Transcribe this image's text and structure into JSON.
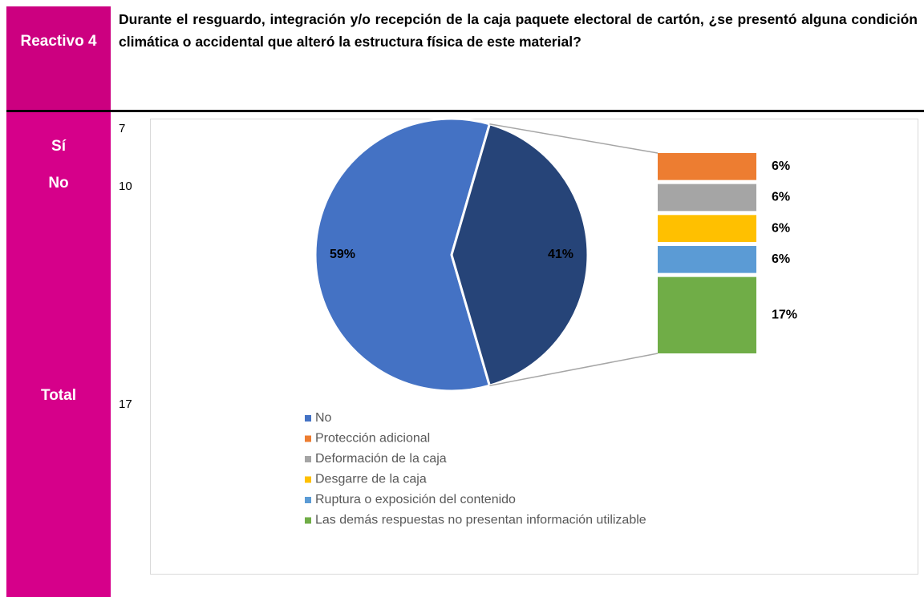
{
  "table": {
    "header": "Reactivo 4",
    "question": "Durante el resguardo, integración y/o recepción de la caja paquete electoral de cartón, ¿se presentó alguna condición climática o accidental que alteró la estructura física de este material?",
    "rows": [
      [
        "Sí",
        7
      ],
      [
        "No",
        10
      ],
      [
        "Total",
        17
      ]
    ]
  },
  "chart_data": {
    "type": "pie",
    "categories": [
      "No",
      "Protección adicional",
      "Deformación de la caja",
      "Desgarre de la caja",
      "Ruptura o exposición del contenido",
      "Las demás respuestas no presentan información utilizable"
    ],
    "values": [
      59,
      6,
      6,
      6,
      6,
      17
    ],
    "value_labels": [
      "59%",
      "6%",
      "6%",
      "6%",
      "6%",
      "17%"
    ],
    "colors": [
      "#4472c4",
      "#ed7d31",
      "#a5a5a5",
      "#ffc000",
      "#5b9bd5",
      "#70ad47"
    ],
    "secondary_total": 41,
    "secondary_total_label": "41%",
    "secondary_color": "#264478",
    "legend": "bottom"
  }
}
